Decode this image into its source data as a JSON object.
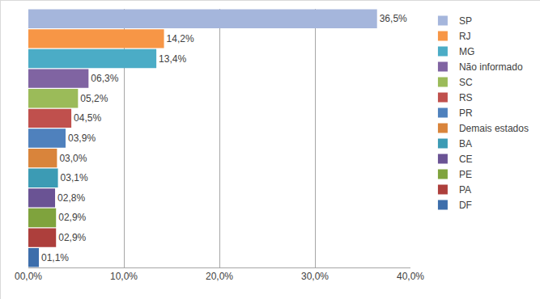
{
  "chart_data": {
    "type": "bar",
    "orientation": "horizontal",
    "categories": [
      "SP",
      "RJ",
      "MG",
      "Não informado",
      "SC",
      "RS",
      "PR",
      "Demais estados",
      "BA",
      "CE",
      "PE",
      "PA",
      "DF"
    ],
    "values": [
      36.5,
      14.2,
      13.4,
      6.3,
      5.2,
      4.5,
      3.9,
      3.0,
      3.1,
      2.8,
      2.9,
      2.9,
      1.1
    ],
    "value_labels": [
      "36,5%",
      "14,2%",
      "13,4%",
      "06,3%",
      "05,2%",
      "04,5%",
      "03,9%",
      "03,0%",
      "03,1%",
      "02,8%",
      "02,9%",
      "02,9%",
      "01,1%"
    ],
    "colors": [
      "#a5b6dc",
      "#f79646",
      "#4bacc6",
      "#8064a2",
      "#9bbb59",
      "#c0504d",
      "#4f81bd",
      "#d9843b",
      "#3c9bb4",
      "#6a5394",
      "#7fa33d",
      "#ad3f3c",
      "#3d6eab"
    ],
    "xlim": [
      0,
      40
    ],
    "xticks": [
      {
        "value": 0,
        "label": "00,0%"
      },
      {
        "value": 10,
        "label": "10,0%"
      },
      {
        "value": 20,
        "label": "20,0%"
      },
      {
        "value": 30,
        "label": "30,0%"
      },
      {
        "value": 40,
        "label": "40,0%"
      }
    ],
    "grid": true,
    "legend": "right",
    "data_labels": true,
    "tick_labels": "x"
  }
}
